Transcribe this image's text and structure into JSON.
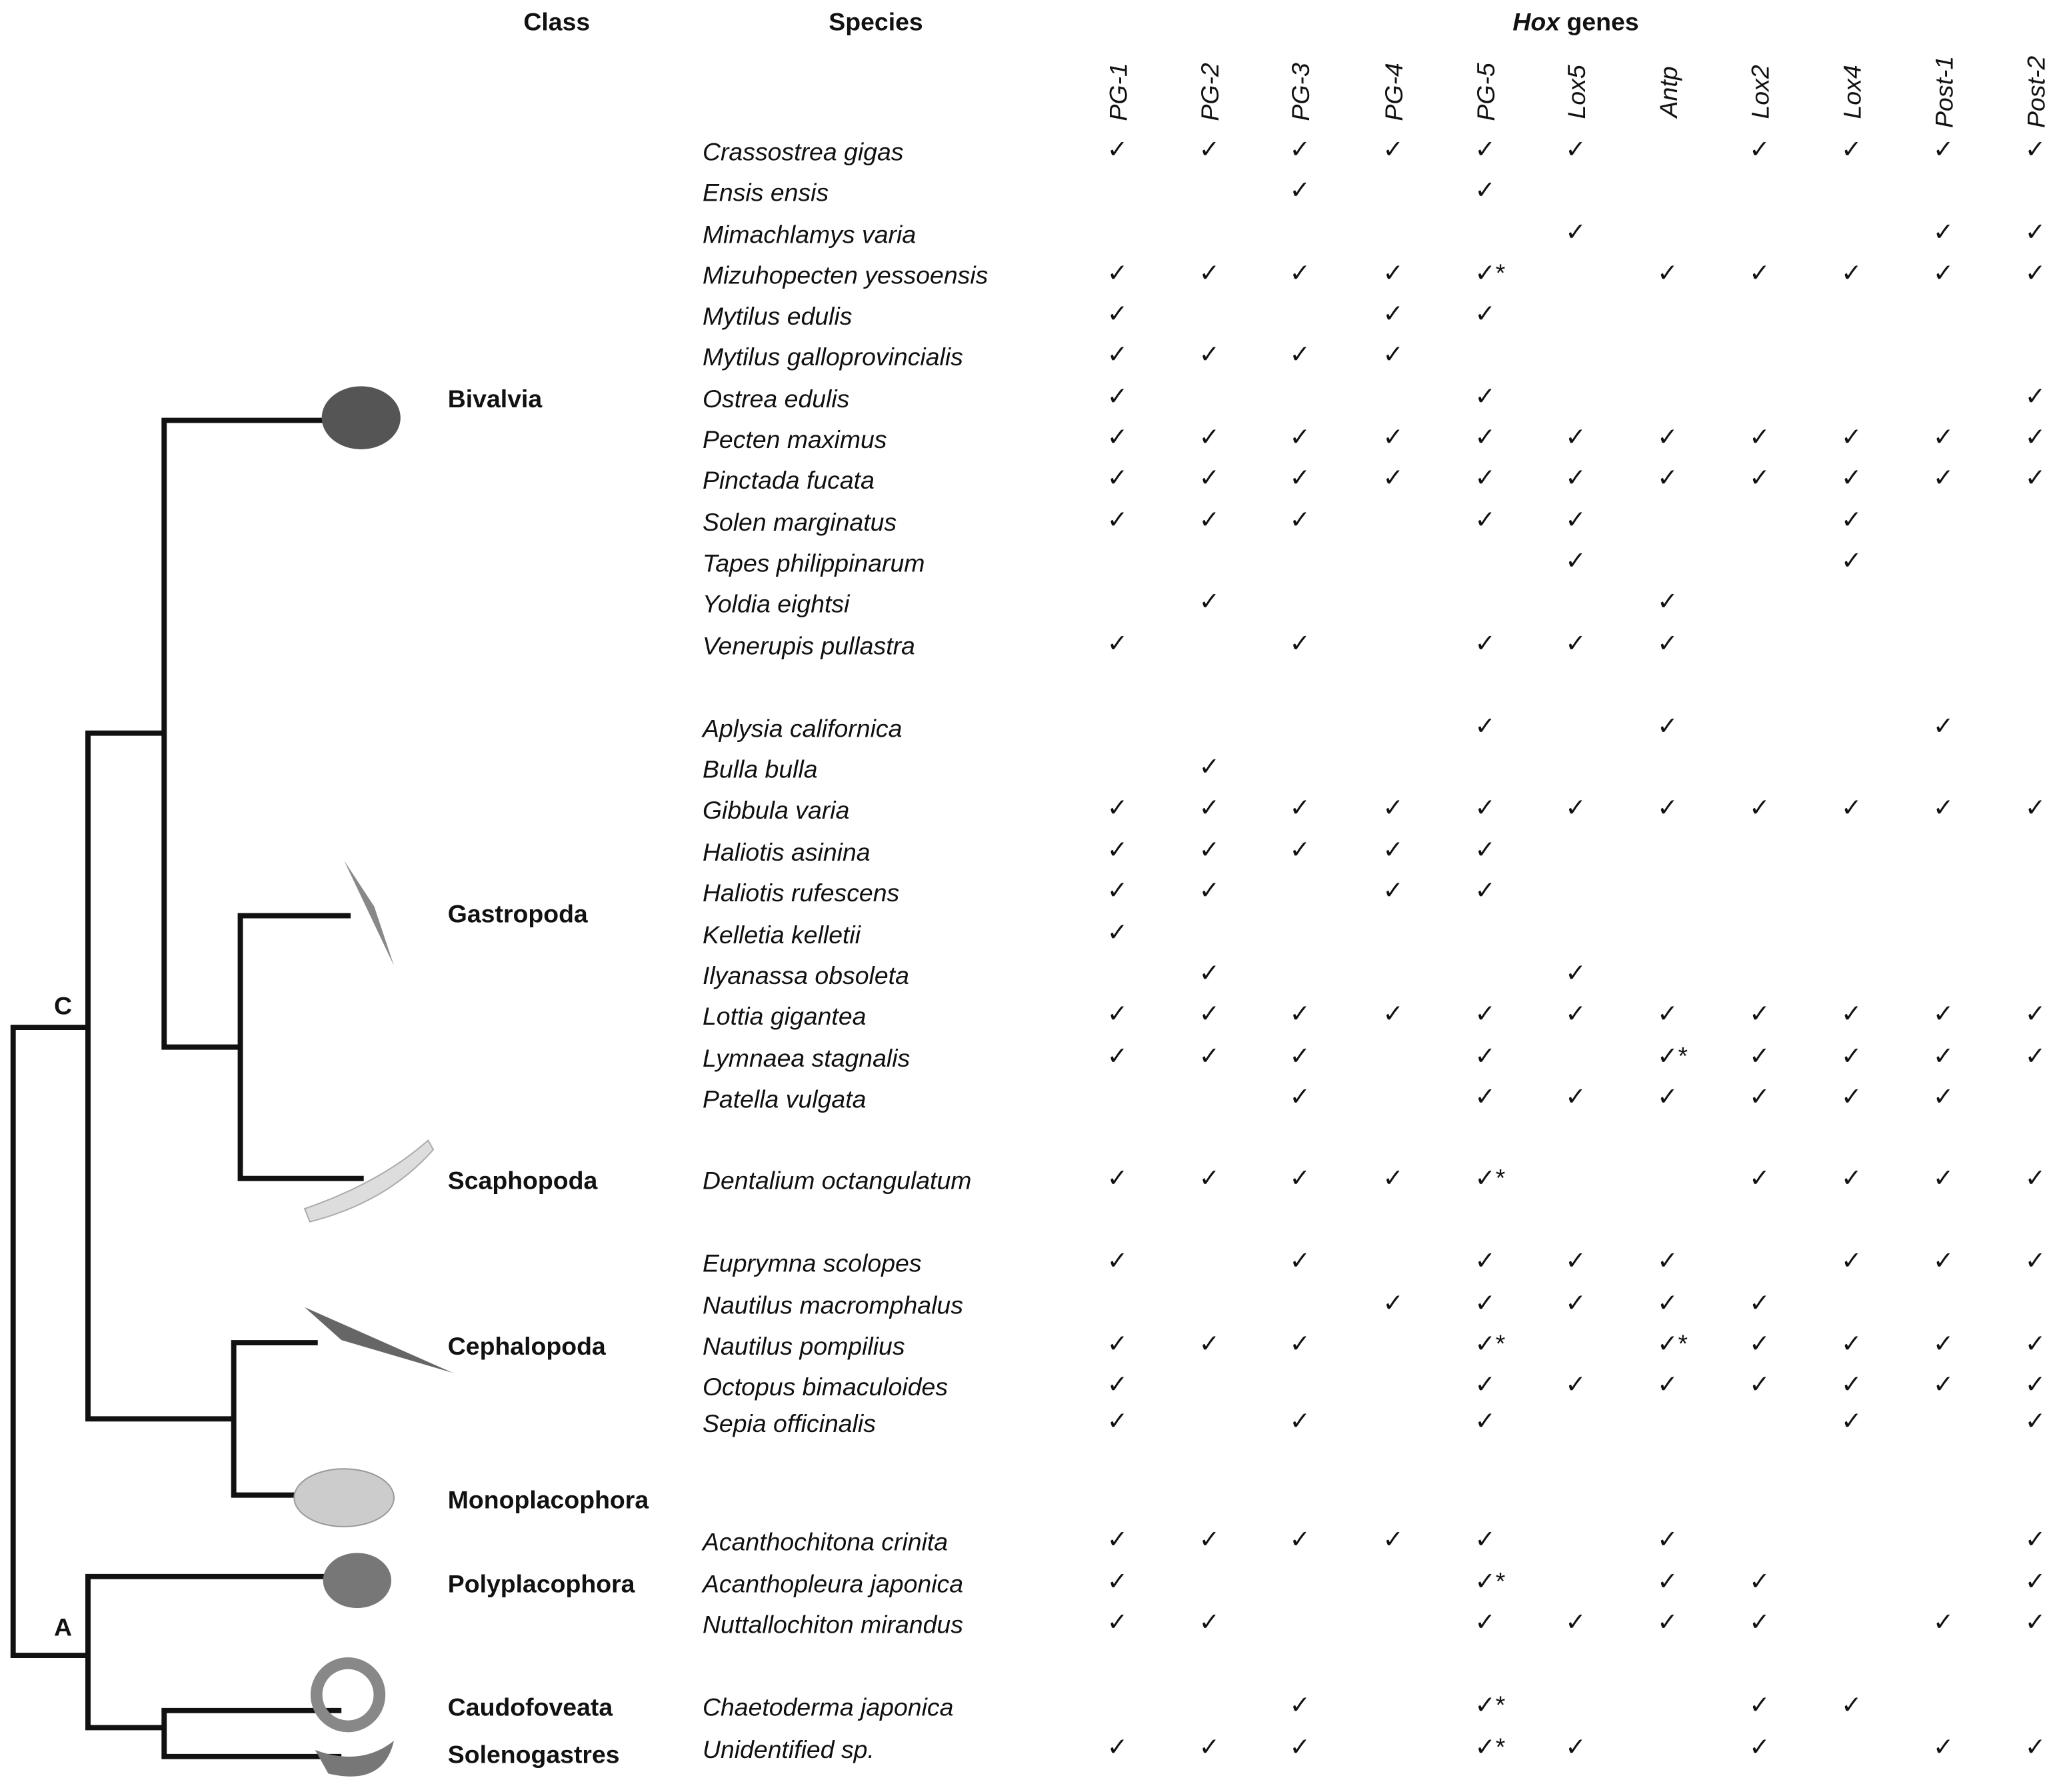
{
  "header": {
    "class": "Class",
    "species": "Species",
    "hox": "Hox",
    "genes": "genes"
  },
  "genes": [
    "PG-1",
    "PG-2",
    "PG-3",
    "PG-4",
    "PG-5",
    "Lox5",
    "Antp",
    "Lox2",
    "Lox4",
    "Post-1",
    "Post-2"
  ],
  "nodes": [
    "C",
    "A"
  ],
  "classes": [
    "Bivalvia",
    "Gastropoda",
    "Scaphopoda",
    "Cephalopoda",
    "Monoplacophora",
    "Polyplacophora",
    "Caudofoveata",
    "Solenogastres"
  ],
  "rows": [
    {
      "species": "Crassostrea gigas",
      "marks": [
        "✓",
        "✓",
        "✓",
        "✓",
        "✓",
        "✓",
        null,
        "✓",
        "✓",
        "✓",
        "✓"
      ]
    },
    {
      "species": "Ensis ensis",
      "marks": [
        null,
        null,
        "✓",
        null,
        "✓",
        null,
        null,
        null,
        null,
        null,
        null
      ]
    },
    {
      "species": "Mimachlamys varia",
      "marks": [
        null,
        null,
        null,
        null,
        null,
        "✓",
        null,
        null,
        null,
        "✓",
        "✓"
      ]
    },
    {
      "species": "Mizuhopecten yessoensis",
      "marks": [
        "✓",
        "✓",
        "✓",
        "✓",
        "✓*",
        null,
        "✓",
        "✓",
        "✓",
        "✓",
        "✓"
      ]
    },
    {
      "species": "Mytilus edulis",
      "marks": [
        "✓",
        null,
        null,
        "✓",
        "✓",
        null,
        null,
        null,
        null,
        null,
        null
      ]
    },
    {
      "species": "Mytilus galloprovincialis",
      "marks": [
        "✓",
        "✓",
        "✓",
        "✓",
        null,
        null,
        null,
        null,
        null,
        null,
        null
      ]
    },
    {
      "species": "Ostrea edulis",
      "marks": [
        "✓",
        null,
        null,
        null,
        "✓",
        null,
        null,
        null,
        null,
        null,
        "✓"
      ]
    },
    {
      "species": "Pecten maximus",
      "marks": [
        "✓",
        "✓",
        "✓",
        "✓",
        "✓",
        "✓",
        "✓",
        "✓",
        "✓",
        "✓",
        "✓"
      ]
    },
    {
      "species": "Pinctada fucata",
      "marks": [
        "✓",
        "✓",
        "✓",
        "✓",
        "✓",
        "✓",
        "✓",
        "✓",
        "✓",
        "✓",
        "✓"
      ]
    },
    {
      "species": "Solen marginatus",
      "marks": [
        "✓",
        "✓",
        "✓",
        null,
        "✓",
        "✓",
        null,
        null,
        "✓",
        null,
        null
      ]
    },
    {
      "species": "Tapes philippinarum",
      "marks": [
        null,
        null,
        null,
        null,
        null,
        "✓",
        null,
        null,
        "✓",
        null,
        null
      ]
    },
    {
      "species": "Yoldia eightsi",
      "marks": [
        null,
        "✓",
        null,
        null,
        null,
        null,
        "✓",
        null,
        null,
        null,
        null
      ]
    },
    {
      "species": "Venerupis pullastra",
      "marks": [
        "✓",
        null,
        "✓",
        null,
        "✓",
        "✓",
        "✓",
        null,
        null,
        null,
        null
      ]
    },
    {
      "species": "Aplysia californica",
      "marks": [
        null,
        null,
        null,
        null,
        "✓",
        null,
        "✓",
        null,
        null,
        "✓",
        null
      ]
    },
    {
      "species": "Bulla bulla",
      "marks": [
        null,
        "✓",
        null,
        null,
        null,
        null,
        null,
        null,
        null,
        null,
        null
      ]
    },
    {
      "species": "Gibbula varia",
      "marks": [
        "✓",
        "✓",
        "✓",
        "✓",
        "✓",
        "✓",
        "✓",
        "✓",
        "✓",
        "✓",
        "✓"
      ]
    },
    {
      "species": "Haliotis asinina",
      "marks": [
        "✓",
        "✓",
        "✓",
        "✓",
        "✓",
        null,
        null,
        null,
        null,
        null,
        null
      ]
    },
    {
      "species": "Haliotis rufescens",
      "marks": [
        "✓",
        "✓",
        null,
        "✓",
        "✓",
        null,
        null,
        null,
        null,
        null,
        null
      ]
    },
    {
      "species": "Kelletia kelletii",
      "marks": [
        "✓",
        null,
        null,
        null,
        null,
        null,
        null,
        null,
        null,
        null,
        null
      ]
    },
    {
      "species": "Ilyanassa obsoleta",
      "marks": [
        null,
        "✓",
        null,
        null,
        null,
        "✓",
        null,
        null,
        null,
        null,
        null
      ]
    },
    {
      "species": "Lottia gigantea",
      "marks": [
        "✓",
        "✓",
        "✓",
        "✓",
        "✓",
        "✓",
        "✓",
        "✓",
        "✓",
        "✓",
        "✓"
      ]
    },
    {
      "species": "Lymnaea stagnalis",
      "marks": [
        "✓",
        "✓",
        "✓",
        null,
        "✓",
        null,
        "✓*",
        "✓",
        "✓",
        "✓",
        "✓"
      ]
    },
    {
      "species": "Patella vulgata",
      "marks": [
        null,
        null,
        "✓",
        null,
        "✓",
        "✓",
        "✓",
        "✓",
        "✓",
        "✓",
        null
      ]
    },
    {
      "species": "Dentalium octangulatum",
      "marks": [
        "✓",
        "✓",
        "✓",
        "✓",
        "✓*",
        null,
        null,
        "✓",
        "✓",
        "✓",
        "✓"
      ]
    },
    {
      "species": "Euprymna scolopes",
      "marks": [
        "✓",
        null,
        "✓",
        null,
        "✓",
        "✓",
        "✓",
        null,
        "✓",
        "✓",
        "✓"
      ]
    },
    {
      "species": "Nautilus macromphalus",
      "marks": [
        null,
        null,
        null,
        "✓",
        "✓",
        "✓",
        "✓",
        "✓",
        null,
        null,
        null
      ]
    },
    {
      "species": "Nautilus pompilius",
      "marks": [
        "✓",
        "✓",
        "✓",
        null,
        "✓*",
        null,
        "✓*",
        "✓",
        "✓",
        "✓",
        "✓"
      ]
    },
    {
      "species": "Octopus bimaculoides",
      "marks": [
        "✓",
        null,
        null,
        null,
        "✓",
        "✓",
        "✓",
        "✓",
        "✓",
        "✓",
        "✓"
      ]
    },
    {
      "species": "Sepia officinalis",
      "marks": [
        "✓",
        null,
        "✓",
        null,
        "✓",
        null,
        null,
        null,
        "✓",
        null,
        "✓"
      ]
    },
    {
      "species": "Acanthochitona crinita",
      "marks": [
        "✓",
        "✓",
        "✓",
        "✓",
        "✓",
        null,
        "✓",
        null,
        null,
        null,
        "✓"
      ]
    },
    {
      "species": "Acanthopleura japonica",
      "marks": [
        "✓",
        null,
        null,
        null,
        "✓*",
        null,
        "✓",
        "✓",
        null,
        null,
        "✓"
      ]
    },
    {
      "species": "Nuttallochiton mirandus",
      "marks": [
        "✓",
        "✓",
        null,
        null,
        "✓",
        "✓",
        "✓",
        "✓",
        null,
        "✓",
        "✓"
      ]
    },
    {
      "species": "Chaetoderma japonica",
      "marks": [
        null,
        null,
        "✓",
        null,
        "✓*",
        null,
        null,
        "✓",
        "✓",
        null,
        null
      ]
    },
    {
      "species": "Unidentified sp.",
      "marks": [
        "✓",
        "✓",
        "✓",
        null,
        "✓*",
        "✓",
        null,
        "✓",
        null,
        "✓",
        "✓"
      ]
    }
  ]
}
